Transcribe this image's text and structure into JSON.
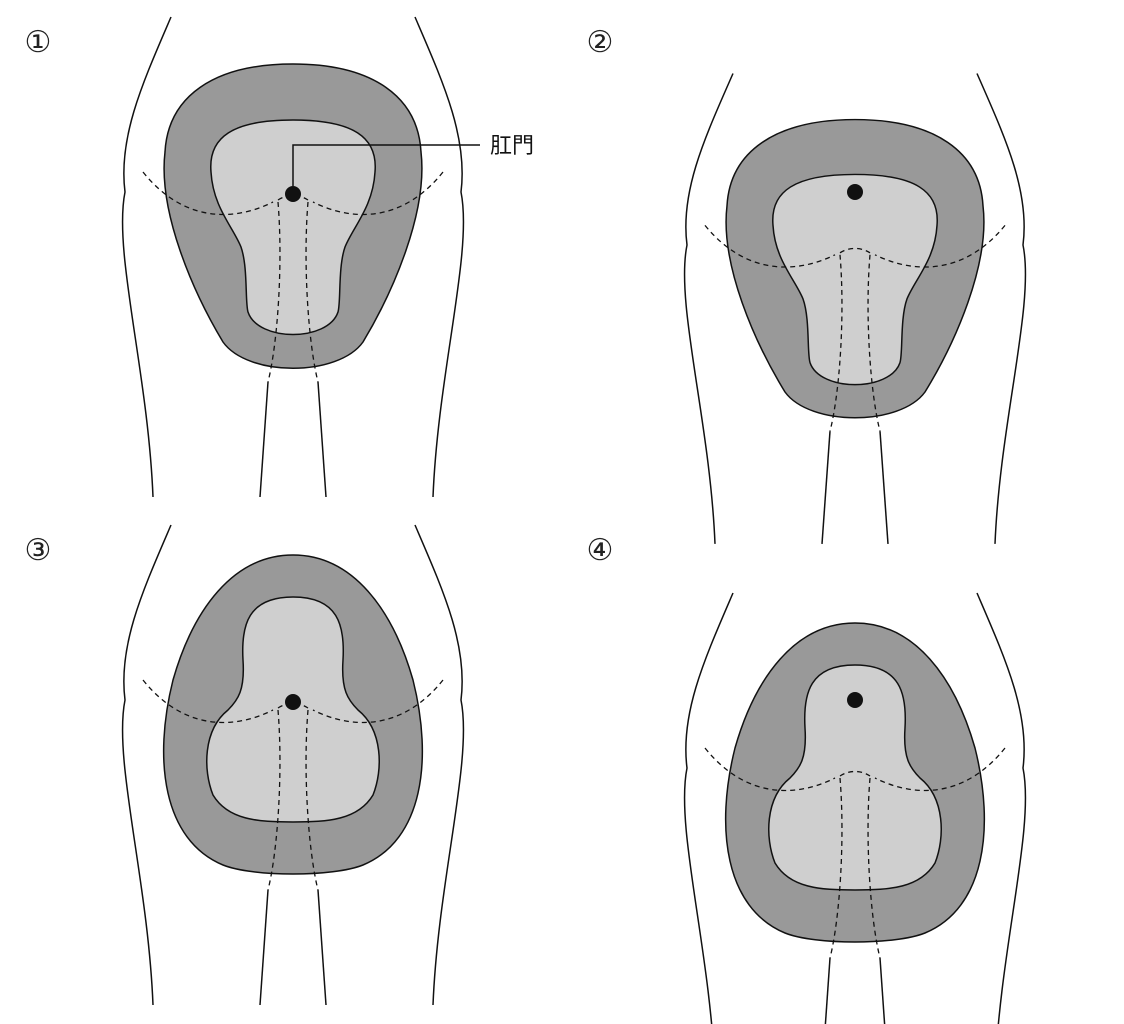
{
  "colors": {
    "outer_fill": "#999999",
    "inner_fill": "#cfcfcf",
    "line": "#111111",
    "background": "#ffffff"
  },
  "panels": [
    {
      "number": "①",
      "shape": "bulb-top"
    },
    {
      "number": "②",
      "shape": "bulb-top"
    },
    {
      "number": "③",
      "shape": "bulb-bottom"
    },
    {
      "number": "④",
      "shape": "bulb-bottom"
    }
  ],
  "annotation": {
    "label": "肛門"
  }
}
